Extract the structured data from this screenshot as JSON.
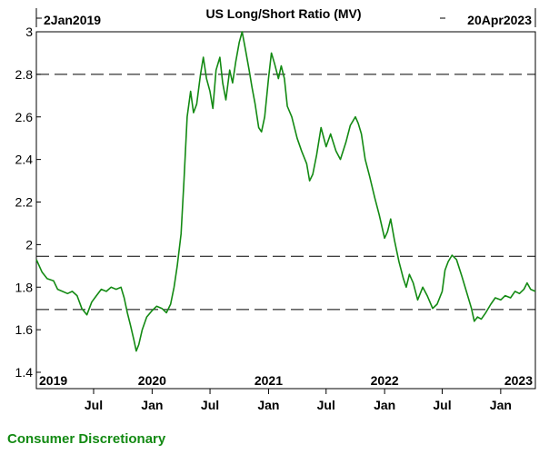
{
  "header": {
    "title": "US Long/Short Ratio (MV)",
    "start_date": "2Jan2019",
    "end_date": "20Apr2023"
  },
  "footer": {
    "sector": "Consumer Discretionary"
  },
  "colors": {
    "line": "#138a13",
    "axis": "#000000",
    "background": "#ffffff"
  },
  "chart_data": {
    "type": "line",
    "title": "US Long/Short Ratio (MV)",
    "xlabel": "",
    "ylabel": "",
    "xlim": [
      "2019-01-02",
      "2023-04-20"
    ],
    "ylim": [
      1.4,
      3.0
    ],
    "y_ticks": [
      1.4,
      1.6,
      1.8,
      2.0,
      2.2,
      2.4,
      2.6,
      2.8,
      3.0
    ],
    "y_tick_labels": [
      "1.4",
      "1.6",
      "1.8",
      "2",
      "2.2",
      "2.4",
      "2.6",
      "2.8",
      "3"
    ],
    "year_labels": [
      {
        "date": "2019-01-02",
        "label": "2019"
      },
      {
        "date": "2020-01-01",
        "label": "2020"
      },
      {
        "date": "2021-01-01",
        "label": "2021"
      },
      {
        "date": "2022-01-01",
        "label": "2022"
      },
      {
        "date": "2023-01-01",
        "label": "2023"
      }
    ],
    "month_labels": [
      {
        "date": "2019-07-01",
        "label": "Jul"
      },
      {
        "date": "2020-01-01",
        "label": "Jan"
      },
      {
        "date": "2020-07-01",
        "label": "Jul"
      },
      {
        "date": "2021-01-01",
        "label": "Jan"
      },
      {
        "date": "2021-07-01",
        "label": "Jul"
      },
      {
        "date": "2022-01-01",
        "label": "Jan"
      },
      {
        "date": "2022-07-01",
        "label": "Jul"
      },
      {
        "date": "2023-01-01",
        "label": "Jan"
      }
    ],
    "reference_lines": [
      2.8,
      1.945,
      1.695
    ],
    "grid": false,
    "legend": "none",
    "series": [
      {
        "points": [
          [
            "2019-01-02",
            1.93
          ],
          [
            "2019-01-20",
            1.87
          ],
          [
            "2019-02-05",
            1.84
          ],
          [
            "2019-02-25",
            1.83
          ],
          [
            "2019-03-10",
            1.79
          ],
          [
            "2019-03-25",
            1.78
          ],
          [
            "2019-04-10",
            1.77
          ],
          [
            "2019-04-25",
            1.78
          ],
          [
            "2019-05-10",
            1.76
          ],
          [
            "2019-05-25",
            1.7
          ],
          [
            "2019-06-10",
            1.67
          ],
          [
            "2019-06-25",
            1.73
          ],
          [
            "2019-07-10",
            1.76
          ],
          [
            "2019-07-25",
            1.79
          ],
          [
            "2019-08-10",
            1.78
          ],
          [
            "2019-08-25",
            1.8
          ],
          [
            "2019-09-10",
            1.79
          ],
          [
            "2019-09-25",
            1.8
          ],
          [
            "2019-10-05",
            1.75
          ],
          [
            "2019-10-15",
            1.68
          ],
          [
            "2019-10-25",
            1.62
          ],
          [
            "2019-11-05",
            1.55
          ],
          [
            "2019-11-12",
            1.5
          ],
          [
            "2019-11-20",
            1.53
          ],
          [
            "2019-12-01",
            1.6
          ],
          [
            "2019-12-15",
            1.66
          ],
          [
            "2020-01-01",
            1.69
          ],
          [
            "2020-01-15",
            1.71
          ],
          [
            "2020-02-01",
            1.7
          ],
          [
            "2020-02-15",
            1.68
          ],
          [
            "2020-02-28",
            1.72
          ],
          [
            "2020-03-10",
            1.8
          ],
          [
            "2020-03-20",
            1.9
          ],
          [
            "2020-04-01",
            2.05
          ],
          [
            "2020-04-10",
            2.3
          ],
          [
            "2020-04-20",
            2.6
          ],
          [
            "2020-05-01",
            2.72
          ],
          [
            "2020-05-10",
            2.62
          ],
          [
            "2020-05-20",
            2.66
          ],
          [
            "2020-06-01",
            2.8
          ],
          [
            "2020-06-10",
            2.88
          ],
          [
            "2020-06-20",
            2.78
          ],
          [
            "2020-07-01",
            2.72
          ],
          [
            "2020-07-10",
            2.64
          ],
          [
            "2020-07-20",
            2.82
          ],
          [
            "2020-08-01",
            2.88
          ],
          [
            "2020-08-10",
            2.76
          ],
          [
            "2020-08-20",
            2.68
          ],
          [
            "2020-09-01",
            2.82
          ],
          [
            "2020-09-10",
            2.76
          ],
          [
            "2020-09-20",
            2.86
          ],
          [
            "2020-10-01",
            2.95
          ],
          [
            "2020-10-10",
            3.0
          ],
          [
            "2020-10-20",
            2.92
          ],
          [
            "2020-11-01",
            2.82
          ],
          [
            "2020-11-10",
            2.74
          ],
          [
            "2020-11-20",
            2.66
          ],
          [
            "2020-12-01",
            2.55
          ],
          [
            "2020-12-10",
            2.53
          ],
          [
            "2020-12-20",
            2.6
          ],
          [
            "2021-01-01",
            2.78
          ],
          [
            "2021-01-10",
            2.9
          ],
          [
            "2021-01-20",
            2.85
          ],
          [
            "2021-02-01",
            2.78
          ],
          [
            "2021-02-10",
            2.84
          ],
          [
            "2021-02-20",
            2.78
          ],
          [
            "2021-03-01",
            2.65
          ],
          [
            "2021-03-15",
            2.6
          ],
          [
            "2021-04-01",
            2.5
          ],
          [
            "2021-04-15",
            2.44
          ],
          [
            "2021-05-01",
            2.38
          ],
          [
            "2021-05-10",
            2.3
          ],
          [
            "2021-05-20",
            2.33
          ],
          [
            "2021-06-01",
            2.42
          ],
          [
            "2021-06-15",
            2.55
          ],
          [
            "2021-07-01",
            2.46
          ],
          [
            "2021-07-15",
            2.52
          ],
          [
            "2021-08-01",
            2.44
          ],
          [
            "2021-08-15",
            2.4
          ],
          [
            "2021-09-01",
            2.48
          ],
          [
            "2021-09-15",
            2.56
          ],
          [
            "2021-10-01",
            2.6
          ],
          [
            "2021-10-10",
            2.57
          ],
          [
            "2021-10-20",
            2.52
          ],
          [
            "2021-11-01",
            2.4
          ],
          [
            "2021-11-15",
            2.32
          ],
          [
            "2021-12-01",
            2.22
          ],
          [
            "2021-12-15",
            2.14
          ],
          [
            "2022-01-01",
            2.03
          ],
          [
            "2022-01-10",
            2.06
          ],
          [
            "2022-01-20",
            2.12
          ],
          [
            "2022-02-01",
            2.02
          ],
          [
            "2022-02-15",
            1.92
          ],
          [
            "2022-03-01",
            1.84
          ],
          [
            "2022-03-10",
            1.8
          ],
          [
            "2022-03-20",
            1.86
          ],
          [
            "2022-04-01",
            1.82
          ],
          [
            "2022-04-15",
            1.74
          ],
          [
            "2022-05-01",
            1.8
          ],
          [
            "2022-05-15",
            1.76
          ],
          [
            "2022-06-01",
            1.7
          ],
          [
            "2022-06-15",
            1.72
          ],
          [
            "2022-07-01",
            1.78
          ],
          [
            "2022-07-10",
            1.88
          ],
          [
            "2022-07-20",
            1.92
          ],
          [
            "2022-08-01",
            1.95
          ],
          [
            "2022-08-15",
            1.93
          ],
          [
            "2022-09-01",
            1.85
          ],
          [
            "2022-09-15",
            1.78
          ],
          [
            "2022-10-01",
            1.7
          ],
          [
            "2022-10-10",
            1.64
          ],
          [
            "2022-10-20",
            1.66
          ],
          [
            "2022-11-01",
            1.65
          ],
          [
            "2022-11-15",
            1.68
          ],
          [
            "2022-12-01",
            1.72
          ],
          [
            "2022-12-15",
            1.75
          ],
          [
            "2023-01-01",
            1.74
          ],
          [
            "2023-01-15",
            1.76
          ],
          [
            "2023-02-01",
            1.75
          ],
          [
            "2023-02-15",
            1.78
          ],
          [
            "2023-03-01",
            1.77
          ],
          [
            "2023-03-15",
            1.79
          ],
          [
            "2023-03-25",
            1.82
          ],
          [
            "2023-04-05",
            1.79
          ],
          [
            "2023-04-20",
            1.78
          ]
        ]
      }
    ]
  }
}
